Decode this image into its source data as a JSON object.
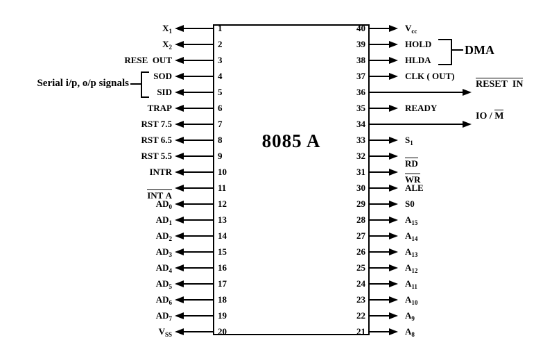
{
  "chip": {
    "title": "8085 A"
  },
  "annotations": {
    "serial_label": "Serial i/p, o/p signals",
    "dma_label": "DMA"
  },
  "colors": {
    "ink": "#000000",
    "background": "#ffffff"
  },
  "left_pins": [
    {
      "num": "1",
      "parts": [
        [
          "t",
          "X"
        ],
        [
          "s",
          "1"
        ]
      ]
    },
    {
      "num": "2",
      "parts": [
        [
          "t",
          "X"
        ],
        [
          "s",
          "2"
        ]
      ]
    },
    {
      "num": "3",
      "parts": [
        [
          "t",
          "RESE  OUT"
        ]
      ]
    },
    {
      "num": "4",
      "parts": [
        [
          "t",
          "SOD"
        ]
      ],
      "group": "serial"
    },
    {
      "num": "5",
      "parts": [
        [
          "t",
          "SID"
        ]
      ],
      "group": "serial"
    },
    {
      "num": "6",
      "parts": [
        [
          "t",
          "TRAP"
        ]
      ]
    },
    {
      "num": "7",
      "parts": [
        [
          "t",
          "RST 7.5"
        ]
      ]
    },
    {
      "num": "8",
      "parts": [
        [
          "t",
          "RST 6.5"
        ]
      ]
    },
    {
      "num": "9",
      "parts": [
        [
          "t",
          "RST 5.5"
        ]
      ]
    },
    {
      "num": "10",
      "parts": [
        [
          "t",
          "INTR"
        ]
      ]
    },
    {
      "num": "11",
      "parts": [
        [
          "o",
          "INT A"
        ]
      ],
      "label_below": true
    },
    {
      "num": "12",
      "parts": [
        [
          "t",
          "AD"
        ],
        [
          "s",
          "0"
        ]
      ]
    },
    {
      "num": "13",
      "parts": [
        [
          "t",
          "AD"
        ],
        [
          "s",
          "1"
        ]
      ]
    },
    {
      "num": "14",
      "parts": [
        [
          "t",
          "AD"
        ],
        [
          "s",
          "2"
        ]
      ]
    },
    {
      "num": "15",
      "parts": [
        [
          "t",
          "AD"
        ],
        [
          "s",
          "3"
        ]
      ]
    },
    {
      "num": "16",
      "parts": [
        [
          "t",
          "AD"
        ],
        [
          "s",
          "4"
        ]
      ]
    },
    {
      "num": "17",
      "parts": [
        [
          "t",
          "AD"
        ],
        [
          "s",
          "5"
        ]
      ]
    },
    {
      "num": "18",
      "parts": [
        [
          "t",
          "AD"
        ],
        [
          "s",
          "6"
        ]
      ]
    },
    {
      "num": "19",
      "parts": [
        [
          "t",
          "AD"
        ],
        [
          "s",
          "7"
        ]
      ]
    },
    {
      "num": "20",
      "parts": [
        [
          "t",
          "V"
        ],
        [
          "s",
          "SS"
        ]
      ]
    }
  ],
  "right_pins": [
    {
      "num": "40",
      "parts": [
        [
          "t",
          "V"
        ],
        [
          "s",
          "cc"
        ]
      ]
    },
    {
      "num": "39",
      "parts": [
        [
          "t",
          "HOLD"
        ]
      ],
      "group": "dma"
    },
    {
      "num": "38",
      "parts": [
        [
          "t",
          "HLDA"
        ]
      ],
      "group": "dma"
    },
    {
      "num": "37",
      "parts": [
        [
          "t",
          "CLK ( OUT)"
        ]
      ]
    },
    {
      "num": "36",
      "parts": [
        [
          "o",
          "RESET  IN"
        ]
      ],
      "long": true
    },
    {
      "num": "35",
      "parts": [
        [
          "t",
          "READY"
        ]
      ]
    },
    {
      "num": "34",
      "parts": [
        [
          "t",
          "IO / "
        ],
        [
          "o",
          "M"
        ]
      ],
      "long": true
    },
    {
      "num": "33",
      "parts": [
        [
          "t",
          "S"
        ],
        [
          "s",
          "1"
        ]
      ]
    },
    {
      "num": "32",
      "parts": [
        [
          "o",
          "RD"
        ]
      ],
      "label_below": true
    },
    {
      "num": "31",
      "parts": [
        [
          "o",
          "WR"
        ]
      ],
      "label_below": true
    },
    {
      "num": "30",
      "parts": [
        [
          "t",
          "ALE"
        ]
      ]
    },
    {
      "num": "29",
      "parts": [
        [
          "t",
          "S0"
        ]
      ]
    },
    {
      "num": "28",
      "parts": [
        [
          "t",
          "A"
        ],
        [
          "s",
          "15"
        ]
      ]
    },
    {
      "num": "27",
      "parts": [
        [
          "t",
          "A"
        ],
        [
          "s",
          "14"
        ]
      ]
    },
    {
      "num": "26",
      "parts": [
        [
          "t",
          "A"
        ],
        [
          "s",
          "13"
        ]
      ]
    },
    {
      "num": "25",
      "parts": [
        [
          "t",
          "A"
        ],
        [
          "s",
          "12"
        ]
      ]
    },
    {
      "num": "24",
      "parts": [
        [
          "t",
          "A"
        ],
        [
          "s",
          "11"
        ]
      ]
    },
    {
      "num": "23",
      "parts": [
        [
          "t",
          "A"
        ],
        [
          "s",
          "10"
        ]
      ]
    },
    {
      "num": "22",
      "parts": [
        [
          "t",
          "A"
        ],
        [
          "s",
          "9"
        ]
      ]
    },
    {
      "num": "21",
      "parts": [
        [
          "t",
          "A"
        ],
        [
          "s",
          "8"
        ]
      ]
    }
  ]
}
